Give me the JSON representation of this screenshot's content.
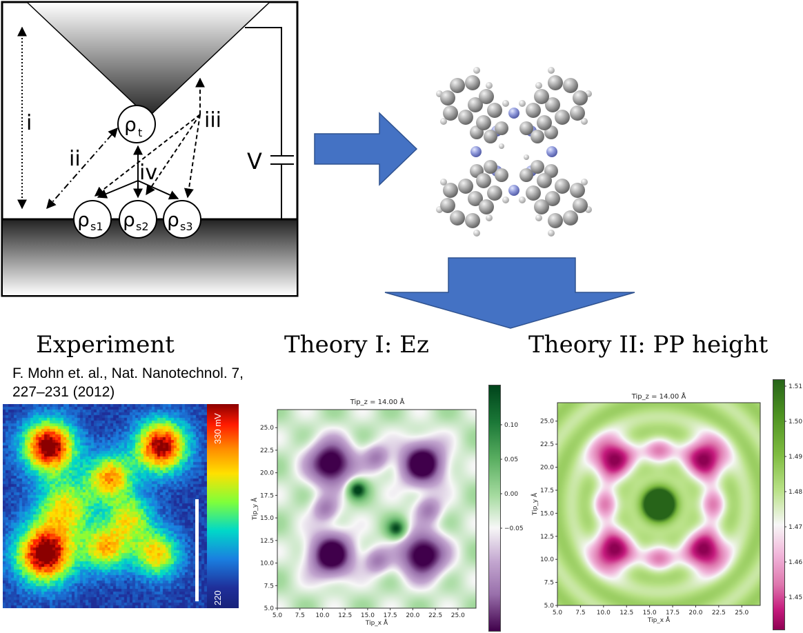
{
  "schematic": {
    "labels": {
      "i": "i",
      "ii": "ii",
      "iii": "iii",
      "iv": "iv",
      "v": "V",
      "rho_t": "ρ",
      "rho_t_sub": "t",
      "rho_s1": "ρ",
      "rho_s1_sub": "s1",
      "rho_s2": "ρ",
      "rho_s2_sub": "s2",
      "rho_s3": "ρ",
      "rho_s3_sub": "s3"
    }
  },
  "headings": {
    "experiment": "Experiment",
    "theory1": "Theory I: Ez",
    "theory2": "Theory II: PP height"
  },
  "citation": {
    "line1": "F. Mohn et. al., Nat. Nanotechnol. 7,",
    "line2": "227–231 (2012)"
  },
  "experiment_image": {
    "colorbar_top": "330 mV",
    "colorbar_bottom": "220"
  },
  "colors": {
    "arrow_blue": "#4472c4",
    "carbon_gray": "#8c8c8c",
    "nitrogen_blue": "#8c96d8"
  },
  "plot1": {
    "title": "Tip_z = 14.00 Å",
    "xlabel": "Tip_x Å",
    "ylabel": "Tip_y Å",
    "xticks": [
      "5.0",
      "7.5",
      "10.0",
      "12.5",
      "15.0",
      "17.5",
      "20.0",
      "22.5",
      "25.0"
    ],
    "yticks": [
      "5.0",
      "7.5",
      "10.0",
      "12.5",
      "15.0",
      "17.5",
      "20.0",
      "22.5",
      "25.0"
    ],
    "cbar_ticks": [
      "0.10",
      "0.05",
      "0.00",
      "−0.05"
    ],
    "cmap": "PRGn"
  },
  "plot2": {
    "title": "Tip_z = 14.00 Å",
    "xlabel": "Tip_x Å",
    "ylabel": "Tip_y Å",
    "xticks": [
      "5.0",
      "7.5",
      "10.0",
      "12.5",
      "15.0",
      "17.5",
      "20.0",
      "22.5",
      "25.0"
    ],
    "yticks": [
      "5.0",
      "7.5",
      "10.0",
      "12.5",
      "15.0",
      "17.5",
      "20.0",
      "22.5",
      "25.0"
    ],
    "cbar_ticks": [
      "1.51",
      "1.50",
      "1.49",
      "1.48",
      "1.47",
      "1.46",
      "1.45"
    ],
    "cmap": "PiYG"
  }
}
